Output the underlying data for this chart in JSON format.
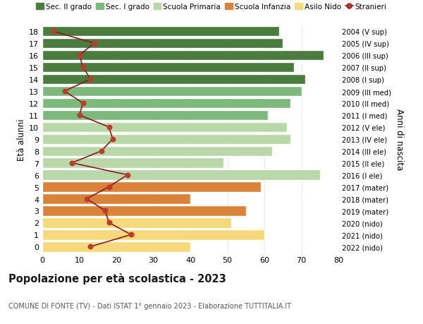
{
  "ages": [
    18,
    17,
    16,
    15,
    14,
    13,
    12,
    11,
    10,
    9,
    8,
    7,
    6,
    5,
    4,
    3,
    2,
    1,
    0
  ],
  "anni_nascita": [
    "2004 (V sup)",
    "2005 (IV sup)",
    "2006 (III sup)",
    "2007 (II sup)",
    "2008 (I sup)",
    "2009 (III med)",
    "2010 (II med)",
    "2011 (I med)",
    "2012 (V ele)",
    "2013 (IV ele)",
    "2014 (III ele)",
    "2015 (II ele)",
    "2016 (I ele)",
    "2017 (mater)",
    "2018 (mater)",
    "2019 (mater)",
    "2020 (nido)",
    "2021 (nido)",
    "2022 (nido)"
  ],
  "bar_values": [
    64,
    65,
    76,
    68,
    71,
    70,
    67,
    61,
    66,
    67,
    62,
    49,
    75,
    59,
    40,
    55,
    51,
    60,
    40
  ],
  "bar_colors": [
    "#4a7c3f",
    "#4a7c3f",
    "#4a7c3f",
    "#4a7c3f",
    "#4a7c3f",
    "#7db87d",
    "#7db87d",
    "#7db87d",
    "#b8d8a8",
    "#b8d8a8",
    "#b8d8a8",
    "#b8d8a8",
    "#b8d8a8",
    "#d9823a",
    "#d9823a",
    "#d9823a",
    "#f5d97a",
    "#f5d97a",
    "#f5d97a"
  ],
  "stranieri_values": [
    3,
    14,
    10,
    11,
    13,
    6,
    11,
    10,
    18,
    19,
    16,
    8,
    23,
    18,
    12,
    17,
    18,
    24,
    13
  ],
  "legend_labels": [
    "Sec. II grado",
    "Sec. I grado",
    "Scuola Primaria",
    "Scuola Infanzia",
    "Asilo Nido",
    "Stranieri"
  ],
  "legend_colors": [
    "#4a7c3f",
    "#7db87d",
    "#b8d8a8",
    "#d9823a",
    "#f5d97a",
    "#c0392b"
  ],
  "stranieri_line_color": "#8b1a1a",
  "stranieri_marker_color": "#c0392b",
  "ylabel_left": "Età alunni",
  "ylabel_right": "Anni di nascita",
  "title": "Popolazione per età scolastica - 2023",
  "subtitle": "COMUNE DI FONTE (TV) - Dati ISTAT 1° gennaio 2023 - Elaborazione TUTTITALIA.IT",
  "xlim": [
    0,
    80
  ],
  "xticks": [
    0,
    10,
    20,
    30,
    40,
    50,
    60,
    70,
    80
  ],
  "bg_color": "#ffffff",
  "bar_edge_color": "#ffffff"
}
